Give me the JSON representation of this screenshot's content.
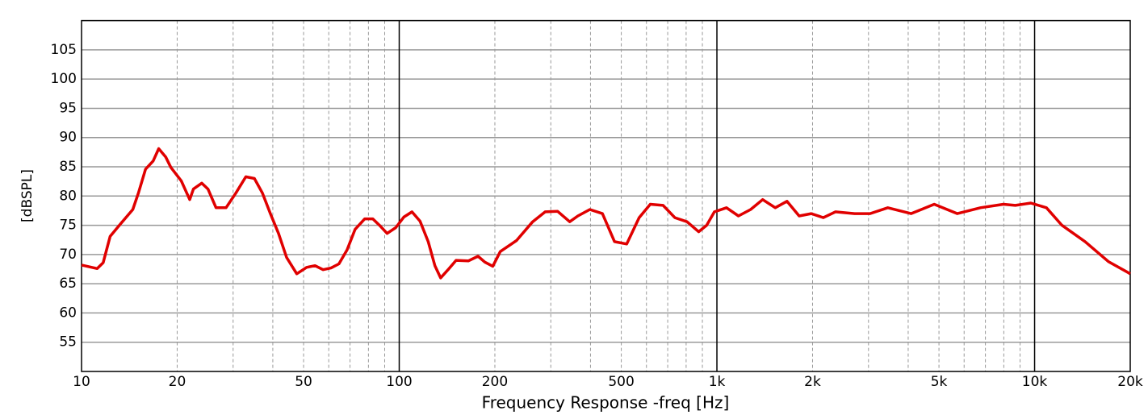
{
  "chart_data": {
    "type": "line",
    "xlabel": "Frequency Response -freq [Hz]",
    "ylabel": "[dBSPL]",
    "log_x": true,
    "grid": true,
    "xlim": [
      10,
      20000
    ],
    "ylim": [
      50,
      110
    ],
    "xticks": [
      10,
      20,
      50,
      100,
      200,
      500,
      {
        "value": 1000,
        "label": "1k"
      },
      {
        "value": 2000,
        "label": "2k"
      },
      {
        "value": 5000,
        "label": "5k"
      },
      {
        "value": 10000,
        "label": "10k"
      },
      {
        "value": 20000,
        "label": "20k"
      }
    ],
    "yticks": [
      55,
      60,
      65,
      70,
      75,
      80,
      85,
      90,
      95,
      100,
      105
    ],
    "x_grid_minor": [
      20,
      30,
      40,
      50,
      60,
      70,
      80,
      90,
      200,
      300,
      400,
      500,
      600,
      700,
      800,
      900,
      2000,
      3000,
      4000,
      5000,
      6000,
      7000,
      8000,
      9000
    ],
    "x_grid_major": [
      100,
      1000,
      10000
    ],
    "x": [
      10,
      11.2,
      11.7,
      12.3,
      13.3,
      14.5,
      15.1,
      15.9,
      16.8,
      17.5,
      18.4,
      19.1,
      20.6,
      21.9,
      22.5,
      23.9,
      25,
      26.5,
      28.5,
      30.6,
      32.9,
      35,
      37.1,
      39.3,
      41.7,
      44.2,
      47.6,
      51.1,
      54.3,
      57.6,
      61,
      64.6,
      68.5,
      72.6,
      77.9,
      82.6,
      86.7,
      91.6,
      97.5,
      103.4,
      109.7,
      116.3,
      123.4,
      129.5,
      135,
      142.5,
      151,
      165,
      177,
      186,
      197,
      208,
      234,
      263,
      288,
      315,
      344,
      365,
      398,
      436,
      476,
      520,
      569,
      617,
      677,
      737,
      805,
      876,
      928,
      982,
      1072,
      1169,
      1277,
      1393,
      1526,
      1662,
      1815,
      1982,
      2163,
      2361,
      2713,
      3034,
      3451,
      4084,
      4832,
      5711,
      6754,
      7981,
      8693,
      9731,
      10894,
      12190,
      14420,
      17070,
      20000
    ],
    "series": [
      {
        "color": "#e00000",
        "values": [
          68.2,
          67.6,
          68.6,
          73.1,
          75.3,
          77.7,
          80.5,
          84.6,
          86.0,
          88.1,
          86.7,
          84.9,
          82.6,
          79.4,
          81.2,
          82.2,
          81.2,
          78.0,
          78.0,
          80.5,
          83.3,
          83.0,
          80.5,
          77.0,
          73.6,
          69.5,
          66.7,
          67.8,
          68.1,
          67.4,
          67.7,
          68.4,
          70.8,
          74.3,
          76.1,
          76.1,
          75.0,
          73.6,
          74.6,
          76.4,
          77.3,
          75.7,
          72.2,
          68.1,
          66.0,
          67.4,
          69.0,
          68.9,
          69.7,
          68.7,
          68.0,
          70.5,
          72.4,
          75.6,
          77.3,
          77.4,
          75.6,
          76.6,
          77.7,
          77.0,
          72.2,
          71.8,
          76.3,
          78.6,
          78.4,
          76.3,
          75.6,
          73.9,
          75.0,
          77.3,
          78.0,
          76.6,
          77.7,
          79.4,
          78.0,
          79.1,
          76.6,
          77.0,
          76.3,
          77.3,
          77.0,
          77.0,
          78.0,
          77.0,
          78.6,
          77.0,
          78.0,
          78.6,
          78.4,
          78.8,
          78.0,
          75.0,
          72.2,
          68.8,
          66.7
        ]
      }
    ]
  }
}
